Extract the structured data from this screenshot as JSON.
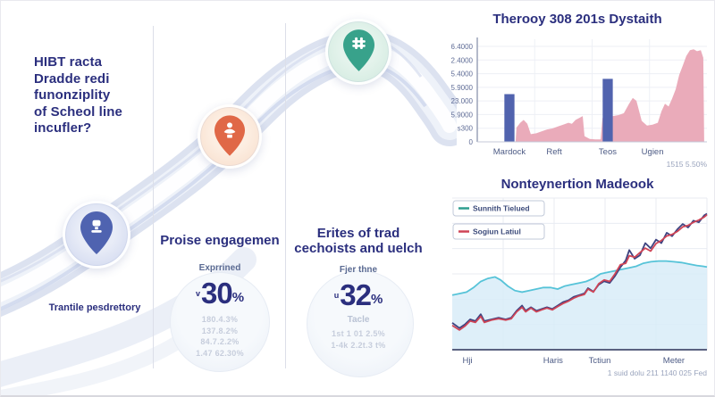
{
  "headline": {
    "brand": "HIBT",
    "line1_rest": " racta",
    "line2": "Dradde redi",
    "line3": "funonziplity",
    "line4": "of Scheol line",
    "line5": "incufler?"
  },
  "journey": {
    "milestone_label": "Trantile pesdrettory",
    "markers": [
      {
        "id": "blue",
        "icon": "trophy-icon",
        "pin_color": "#4f63b0",
        "halo_color": "#cdd5ee"
      },
      {
        "id": "orange",
        "icon": "person-icon",
        "pin_color": "#e06847",
        "halo_color": "#f8dcc9"
      },
      {
        "id": "green",
        "icon": "hash-icon",
        "pin_color": "#38a28b",
        "halo_color": "#cfe9dd"
      }
    ]
  },
  "stats": [
    {
      "heading": "Proise engagemen",
      "sub": "Exprrined",
      "prefix": "v",
      "value": "30",
      "unit": "%",
      "faded": [
        "180.4.3%",
        "137.8.2%",
        "84.7.2.2%",
        "1.47 62.30%"
      ]
    },
    {
      "heading": "Erites of trad cechoists and uelch",
      "sub": "Fjer thne",
      "prefix": "u",
      "value": "32",
      "unit": "%",
      "sub2": "Tacle",
      "faded": [
        "1st 1 01 2.5%",
        "1-4k 2.2t.3 t%"
      ]
    }
  ],
  "chart_data": [
    {
      "type": "bar",
      "subtype": "bar-with-area-overlay",
      "title": "Therooy 308 201s Dystaith",
      "y_tick_labels": [
        "6.4000",
        "2.4000",
        "5.4000",
        "5.9000",
        "23.000",
        "5.9000",
        "s300",
        "0"
      ],
      "x_tick_labels": [
        "Mardock",
        "Reft",
        "Teos",
        "Ugien"
      ],
      "x_tick_pos_pct": [
        14,
        33.5,
        56.8,
        76.3
      ],
      "grid": true,
      "legend_position": "none",
      "bars": {
        "color": "#5163ae",
        "width_pct": 4.4,
        "points": [
          {
            "x_pct": 14,
            "v_pct": 50
          },
          {
            "x_pct": 56.8,
            "v_pct": 66
          }
        ]
      },
      "area": {
        "fill": "#e9a6b6",
        "points_pct": [
          [
            16.7,
            0
          ],
          [
            17.1,
            15
          ],
          [
            18.7,
            20
          ],
          [
            20.2,
            23
          ],
          [
            21.8,
            19
          ],
          [
            23.3,
            8
          ],
          [
            25.7,
            9
          ],
          [
            28,
            11
          ],
          [
            30.4,
            13
          ],
          [
            32.7,
            14
          ],
          [
            35,
            16
          ],
          [
            37.4,
            18
          ],
          [
            39.7,
            20
          ],
          [
            41.2,
            19
          ],
          [
            42.8,
            23
          ],
          [
            44.4,
            25
          ],
          [
            45.9,
            27
          ],
          [
            46.7,
            6
          ],
          [
            49,
            3
          ],
          [
            51.4,
            2.5
          ],
          [
            53.7,
            2.5
          ],
          [
            54.5,
            25
          ],
          [
            56.8,
            26
          ],
          [
            59.1,
            27
          ],
          [
            61.5,
            28
          ],
          [
            63.8,
            30
          ],
          [
            66.1,
            40
          ],
          [
            67.7,
            46
          ],
          [
            69.3,
            43
          ],
          [
            71.6,
            22
          ],
          [
            73.9,
            17
          ],
          [
            76.3,
            18
          ],
          [
            78.6,
            20
          ],
          [
            80.2,
            32
          ],
          [
            81.7,
            40
          ],
          [
            83.3,
            37
          ],
          [
            84.8,
            45
          ],
          [
            86.4,
            55
          ],
          [
            87.9,
            70
          ],
          [
            89.5,
            80
          ],
          [
            91,
            90
          ],
          [
            92.6,
            96
          ],
          [
            94.2,
            97
          ],
          [
            95.7,
            95
          ],
          [
            97.3,
            96
          ],
          [
            98.4,
            88
          ],
          [
            98.8,
            0
          ]
        ]
      },
      "note": "1515 5.50%"
    },
    {
      "type": "line",
      "subtype": "line-with-area-band",
      "title": "Nonteynertion Madeook",
      "legend": [
        {
          "label": "Sunnith Tielued",
          "color": "#2e9e8f"
        },
        {
          "label": "Sogiun Latiul",
          "color": "#cf4456"
        }
      ],
      "legend_position": "top-left",
      "x_tick_labels": [
        "Hji",
        "Haris",
        "Tctiun",
        "Meter"
      ],
      "x_tick_pos_pct": [
        6,
        39.6,
        57.9,
        87
      ],
      "grid": true,
      "series": [
        {
          "name": "band",
          "type": "area",
          "line_color": "#56c3d8",
          "fill": "#d8ecf8",
          "points_pct": [
            [
              0,
              36
            ],
            [
              2.8,
              37
            ],
            [
              5.6,
              38
            ],
            [
              8.4,
              41
            ],
            [
              11.2,
              45
            ],
            [
              14,
              47
            ],
            [
              16.8,
              48
            ],
            [
              19,
              46
            ],
            [
              21.8,
              42
            ],
            [
              24.6,
              39
            ],
            [
              27.4,
              38
            ],
            [
              30.2,
              39
            ],
            [
              33,
              40
            ],
            [
              35.8,
              41
            ],
            [
              38.6,
              41
            ],
            [
              41.4,
              40
            ],
            [
              44.2,
              42
            ],
            [
              47,
              43
            ],
            [
              49.8,
              44
            ],
            [
              52.6,
              45
            ],
            [
              55.4,
              47
            ],
            [
              58.2,
              50
            ],
            [
              61,
              51
            ],
            [
              63.8,
              52
            ],
            [
              66.6,
              53
            ],
            [
              69.4,
              54
            ],
            [
              72.2,
              55
            ],
            [
              75,
              57
            ],
            [
              78,
              58
            ],
            [
              81,
              58.5
            ],
            [
              84,
              58.5
            ],
            [
              87,
              58
            ],
            [
              90,
              57.5
            ],
            [
              93,
              56.5
            ],
            [
              96,
              55.5
            ],
            [
              98.5,
              55
            ],
            [
              100,
              54.5
            ]
          ]
        },
        {
          "name": "navy",
          "type": "line",
          "color": "#3d4380",
          "points_pct": [
            [
              0,
              17.7
            ],
            [
              2.8,
              14.3
            ],
            [
              4.9,
              16.6
            ],
            [
              7,
              20
            ],
            [
              9.1,
              18.9
            ],
            [
              11.2,
              23.4
            ],
            [
              12.6,
              18.9
            ],
            [
              15.4,
              20
            ],
            [
              18.2,
              21.1
            ],
            [
              21,
              20
            ],
            [
              23.2,
              21.1
            ],
            [
              25.3,
              25.7
            ],
            [
              27.4,
              29.1
            ],
            [
              28.8,
              25.7
            ],
            [
              30.9,
              28
            ],
            [
              33,
              25.7
            ],
            [
              35.1,
              26.9
            ],
            [
              37.2,
              28
            ],
            [
              39.3,
              26.9
            ],
            [
              41.4,
              29.1
            ],
            [
              43.5,
              31.4
            ],
            [
              45.6,
              32.6
            ],
            [
              47.7,
              34.9
            ],
            [
              49.8,
              36
            ],
            [
              51.9,
              37.1
            ],
            [
              53.3,
              40.6
            ],
            [
              55.4,
              38.3
            ],
            [
              57.5,
              42.9
            ],
            [
              59.6,
              45.1
            ],
            [
              61.8,
              44
            ],
            [
              63.9,
              48.6
            ],
            [
              66,
              54.3
            ],
            [
              68.1,
              58.9
            ],
            [
              69.5,
              65.7
            ],
            [
              71.6,
              60
            ],
            [
              73.7,
              62.3
            ],
            [
              75.8,
              70.3
            ],
            [
              77.9,
              66.9
            ],
            [
              80,
              72.6
            ],
            [
              82.1,
              70.3
            ],
            [
              84.2,
              77.1
            ],
            [
              86.3,
              74.9
            ],
            [
              88.4,
              79.4
            ],
            [
              90.5,
              82.9
            ],
            [
              92.6,
              80.6
            ],
            [
              94.7,
              85.1
            ],
            [
              96.8,
              84
            ],
            [
              98.9,
              88.6
            ],
            [
              100,
              89.7
            ]
          ]
        },
        {
          "name": "red",
          "type": "line",
          "color": "#cf4456",
          "points_pct": [
            [
              0,
              16
            ],
            [
              2.8,
              13
            ],
            [
              4.9,
              15.5
            ],
            [
              7,
              19
            ],
            [
              9.1,
              18
            ],
            [
              11.2,
              22
            ],
            [
              12.6,
              18
            ],
            [
              15.4,
              19.5
            ],
            [
              18.2,
              20.5
            ],
            [
              21,
              19.5
            ],
            [
              23.2,
              20.5
            ],
            [
              25.3,
              25
            ],
            [
              27.4,
              28
            ],
            [
              28.8,
              25
            ],
            [
              30.9,
              27.5
            ],
            [
              33,
              25
            ],
            [
              35.1,
              26.3
            ],
            [
              37.2,
              27.5
            ],
            [
              39.3,
              26.3
            ],
            [
              41.4,
              28.5
            ],
            [
              43.5,
              30.5
            ],
            [
              45.6,
              32
            ],
            [
              47.7,
              34
            ],
            [
              49.8,
              35.5
            ],
            [
              51.9,
              36.5
            ],
            [
              53.3,
              40
            ],
            [
              55.4,
              38
            ],
            [
              57.5,
              43.5
            ],
            [
              59.6,
              46
            ],
            [
              61.8,
              45
            ],
            [
              63.9,
              50
            ],
            [
              66,
              56
            ],
            [
              68.1,
              57
            ],
            [
              69.5,
              62
            ],
            [
              71.6,
              61
            ],
            [
              73.7,
              64
            ],
            [
              75.8,
              67
            ],
            [
              77.9,
              65
            ],
            [
              80,
              70
            ],
            [
              82.1,
              72
            ],
            [
              84.2,
              75
            ],
            [
              86.3,
              76
            ],
            [
              88.4,
              78
            ],
            [
              90.5,
              81
            ],
            [
              92.6,
              82
            ],
            [
              94.7,
              84
            ],
            [
              96.8,
              85.5
            ],
            [
              98.9,
              87.5
            ],
            [
              100,
              89
            ]
          ]
        }
      ],
      "note": "1 suid dolu 211 1140 025 Fed"
    }
  ],
  "colors": {
    "headline_text": "#2b2f7e",
    "path_band": "#dce2f0",
    "bar_blue": "#5163ae",
    "area_pink": "#e9a6b6",
    "band_cyan": "#56c3d8",
    "line_navy": "#3d4380",
    "line_red": "#cf4456"
  }
}
